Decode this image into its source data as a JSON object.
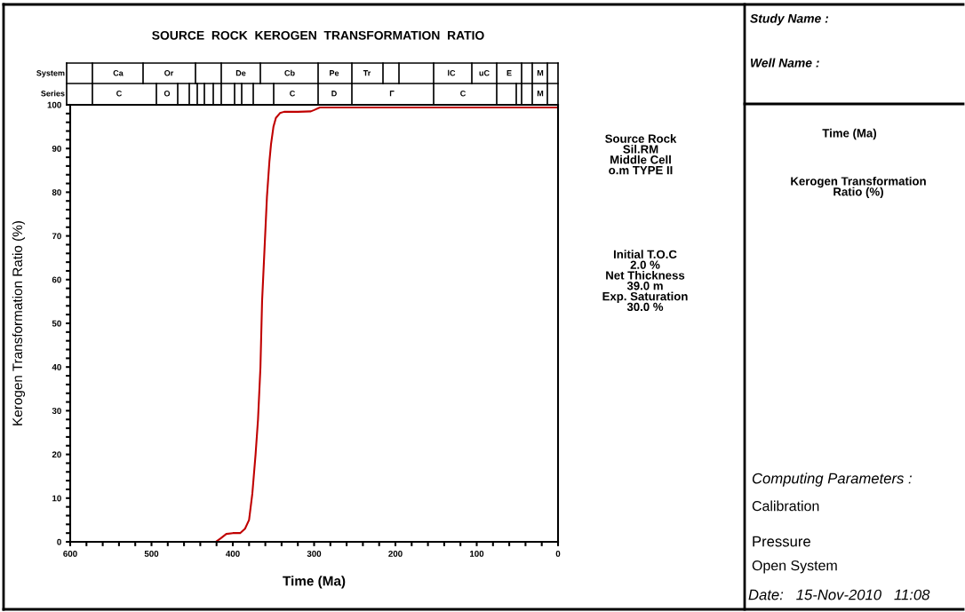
{
  "chart_data": {
    "type": "line",
    "title": "SOURCE  ROCK  KEROGEN  TRANSFORMATION  RATIO",
    "xlabel": "Time (Ma)",
    "ylabel": "Kerogen Transformation Ratio (%)",
    "x": [
      421,
      415,
      408,
      400,
      391,
      385,
      380,
      376,
      372,
      369,
      366,
      364,
      361,
      358,
      355,
      353,
      350,
      347,
      342,
      337,
      320,
      304,
      300,
      293,
      0
    ],
    "series": [
      {
        "color": "#c00000",
        "values": [
          0,
          0.8,
          1.8,
          2,
          2,
          3,
          5,
          11,
          20,
          28,
          40,
          55,
          67,
          79,
          87,
          91,
          95,
          97,
          98.1,
          98.4,
          98.4,
          98.5,
          98.8,
          99.4,
          99.4
        ]
      }
    ],
    "xlim": [
      600,
      0
    ],
    "xticks": [
      600,
      {
        "value": 580,
        "label": null
      },
      {
        "value": 560,
        "label": null
      },
      {
        "value": 540,
        "label": null
      },
      {
        "value": 520,
        "label": null
      },
      500,
      {
        "value": 480,
        "label": null
      },
      {
        "value": 460,
        "label": null
      },
      {
        "value": 440,
        "label": null
      },
      {
        "value": 420,
        "label": null
      },
      400,
      {
        "value": 380,
        "label": null
      },
      {
        "value": 360,
        "label": null
      },
      {
        "value": 340,
        "label": null
      },
      {
        "value": 320,
        "label": null
      },
      300,
      {
        "value": 280,
        "label": null
      },
      {
        "value": 260,
        "label": null
      },
      {
        "value": 240,
        "label": null
      },
      {
        "value": 220,
        "label": null
      },
      200,
      {
        "value": 180,
        "label": null
      },
      {
        "value": 160,
        "label": null
      },
      {
        "value": 140,
        "label": null
      },
      {
        "value": 120,
        "label": null
      },
      100,
      {
        "value": 80,
        "label": null
      },
      {
        "value": 60,
        "label": null
      },
      {
        "value": 40,
        "label": null
      },
      {
        "value": 20,
        "label": null
      },
      0
    ],
    "ylim": [
      0,
      100
    ],
    "yticks": [
      0,
      {
        "value": 2,
        "label": null
      },
      {
        "value": 4,
        "label": null
      },
      {
        "value": 6,
        "label": null
      },
      {
        "value": 8,
        "label": null
      },
      10,
      {
        "value": 12,
        "label": null
      },
      {
        "value": 14,
        "label": null
      },
      {
        "value": 16,
        "label": null
      },
      {
        "value": 18,
        "label": null
      },
      20,
      {
        "value": 22,
        "label": null
      },
      {
        "value": 24,
        "label": null
      },
      {
        "value": 26,
        "label": null
      },
      {
        "value": 28,
        "label": null
      },
      30,
      {
        "value": 32,
        "label": null
      },
      {
        "value": 34,
        "label": null
      },
      {
        "value": 36,
        "label": null
      },
      {
        "value": 38,
        "label": null
      },
      40,
      {
        "value": 42,
        "label": null
      },
      {
        "value": 44,
        "label": null
      },
      {
        "value": 46,
        "label": null
      },
      {
        "value": 48,
        "label": null
      },
      50,
      {
        "value": 52,
        "label": null
      },
      {
        "value": 54,
        "label": null
      },
      {
        "value": 56,
        "label": null
      },
      {
        "value": 58,
        "label": null
      },
      60,
      {
        "value": 62,
        "label": null
      },
      {
        "value": 64,
        "label": null
      },
      {
        "value": 66,
        "label": null
      },
      {
        "value": 68,
        "label": null
      },
      70,
      {
        "value": 72,
        "label": null
      },
      {
        "value": 74,
        "label": null
      },
      {
        "value": 76,
        "label": null
      },
      {
        "value": 78,
        "label": null
      },
      80,
      {
        "value": 82,
        "label": null
      },
      {
        "value": 84,
        "label": null
      },
      {
        "value": 86,
        "label": null
      },
      {
        "value": 88,
        "label": null
      },
      90,
      {
        "value": 92,
        "label": null
      },
      {
        "value": 94,
        "label": null
      },
      {
        "value": 96,
        "label": null
      },
      {
        "value": 98,
        "label": null
      },
      100
    ],
    "grid": false,
    "marker": "none",
    "line_style": "solid",
    "annotations": [
      "Source Rock\nSil.RM\nMiddle Cell\no.m TYPE II",
      "Initial T.O.C\n2.0 %\nNet Thickness\n39.0 m\nExp. Saturation\n30.0 %",
      "Study Name :",
      "Well Name :",
      "Time (Ma)",
      "Kerogen Transformation\nRatio (%)",
      "Computing Parameters :",
      "Calibration",
      "Pressure",
      "Open System",
      "Date:   15-Nov-2010   11:08",
      "System",
      "Series",
      "Ca",
      "Or",
      "De",
      "Cb",
      "Pe",
      "Tr",
      "lC",
      "uC",
      "E",
      "M",
      "C",
      "O",
      "C",
      "D",
      "Γ",
      "C",
      "M"
    ]
  }
}
